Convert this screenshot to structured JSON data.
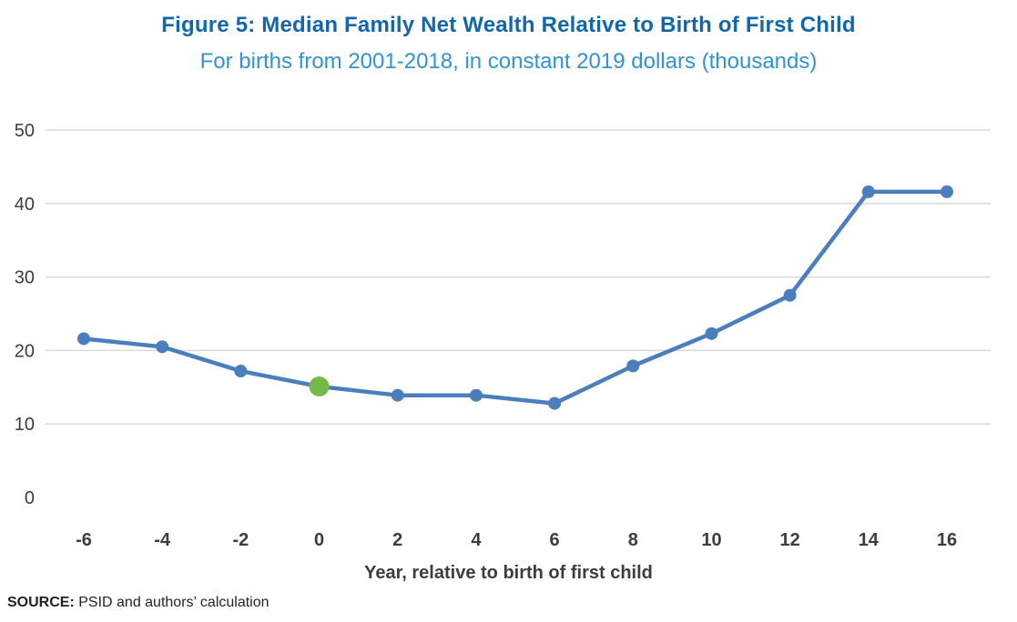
{
  "chart_data": {
    "type": "line",
    "title": "Figure 5: Median Family Net Wealth Relative to Birth of First Child",
    "subtitle": "For births from 2001-2018, in constant 2019 dollars (thousands)",
    "xlabel": "Year, relative to birth of first child",
    "ylabel": "",
    "x": [
      -6,
      -4,
      -2,
      0,
      2,
      4,
      6,
      8,
      10,
      12,
      14,
      16
    ],
    "values": [
      21.6,
      20.5,
      17.2,
      15.1,
      13.9,
      13.9,
      12.8,
      17.9,
      22.3,
      27.5,
      41.6,
      41.6
    ],
    "xticks": [
      -6,
      -4,
      -2,
      0,
      2,
      4,
      6,
      8,
      10,
      12,
      14,
      16
    ],
    "yticks": [
      0,
      10,
      20,
      30,
      40,
      50
    ],
    "ylim": [
      0,
      50
    ],
    "grid": true,
    "legend": false,
    "highlight_x": 0,
    "line_color": "#4a7ebc",
    "highlight_color": "#76b947",
    "grid_color": "#d9d9d9",
    "tick_color": "#3d3d3d"
  },
  "source": {
    "label": "SOURCE:",
    "text": " PSID and authors’ calculation"
  }
}
